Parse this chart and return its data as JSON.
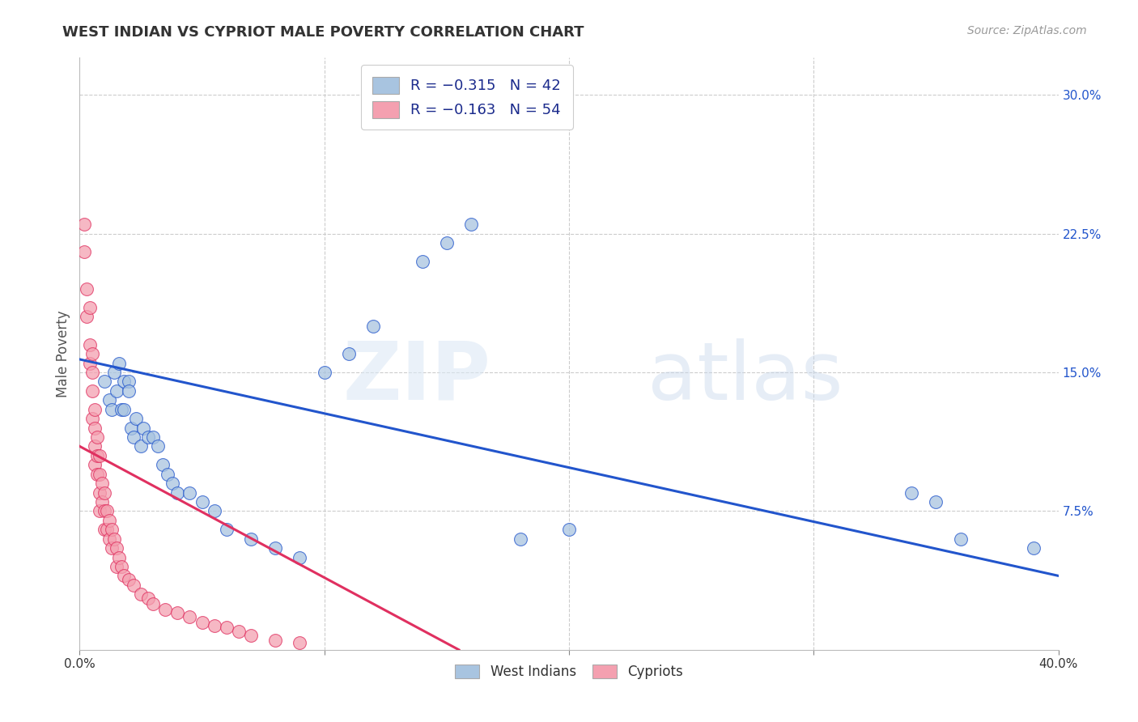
{
  "title": "WEST INDIAN VS CYPRIOT MALE POVERTY CORRELATION CHART",
  "source": "Source: ZipAtlas.com",
  "ylabel": "Male Poverty",
  "ytick_labels": [
    "",
    "7.5%",
    "15.0%",
    "22.5%",
    "30.0%"
  ],
  "ytick_values": [
    0.0,
    0.075,
    0.15,
    0.225,
    0.3
  ],
  "xlim": [
    0.0,
    0.4
  ],
  "ylim": [
    0.0,
    0.32
  ],
  "west_indian_R": -0.315,
  "west_indian_N": 42,
  "cypriot_R": -0.163,
  "cypriot_N": 54,
  "west_indian_color": "#a8c4e0",
  "cypriot_color": "#f4a0b0",
  "west_indian_line_color": "#2255cc",
  "cypriot_line_color": "#e03060",
  "background_color": "#ffffff",
  "grid_color": "#cccccc",
  "west_indian_x": [
    0.01,
    0.012,
    0.013,
    0.014,
    0.015,
    0.016,
    0.017,
    0.018,
    0.018,
    0.02,
    0.02,
    0.021,
    0.022,
    0.023,
    0.025,
    0.026,
    0.028,
    0.03,
    0.032,
    0.034,
    0.036,
    0.038,
    0.04,
    0.045,
    0.05,
    0.055,
    0.06,
    0.07,
    0.08,
    0.09,
    0.1,
    0.11,
    0.12,
    0.14,
    0.15,
    0.16,
    0.18,
    0.2,
    0.34,
    0.35,
    0.36,
    0.39
  ],
  "west_indian_y": [
    0.145,
    0.135,
    0.13,
    0.15,
    0.14,
    0.155,
    0.13,
    0.145,
    0.13,
    0.145,
    0.14,
    0.12,
    0.115,
    0.125,
    0.11,
    0.12,
    0.115,
    0.115,
    0.11,
    0.1,
    0.095,
    0.09,
    0.085,
    0.085,
    0.08,
    0.075,
    0.065,
    0.06,
    0.055,
    0.05,
    0.15,
    0.16,
    0.175,
    0.21,
    0.22,
    0.23,
    0.06,
    0.065,
    0.085,
    0.08,
    0.06,
    0.055
  ],
  "cypriot_x": [
    0.002,
    0.002,
    0.003,
    0.003,
    0.004,
    0.004,
    0.004,
    0.005,
    0.005,
    0.005,
    0.005,
    0.006,
    0.006,
    0.006,
    0.006,
    0.007,
    0.007,
    0.007,
    0.008,
    0.008,
    0.008,
    0.008,
    0.009,
    0.009,
    0.01,
    0.01,
    0.01,
    0.011,
    0.011,
    0.012,
    0.012,
    0.013,
    0.013,
    0.014,
    0.015,
    0.015,
    0.016,
    0.017,
    0.018,
    0.02,
    0.022,
    0.025,
    0.028,
    0.03,
    0.035,
    0.04,
    0.045,
    0.05,
    0.055,
    0.06,
    0.065,
    0.07,
    0.08,
    0.09
  ],
  "cypriot_y": [
    0.23,
    0.215,
    0.195,
    0.18,
    0.185,
    0.165,
    0.155,
    0.16,
    0.15,
    0.14,
    0.125,
    0.13,
    0.12,
    0.11,
    0.1,
    0.115,
    0.105,
    0.095,
    0.105,
    0.095,
    0.085,
    0.075,
    0.09,
    0.08,
    0.085,
    0.075,
    0.065,
    0.075,
    0.065,
    0.07,
    0.06,
    0.065,
    0.055,
    0.06,
    0.055,
    0.045,
    0.05,
    0.045,
    0.04,
    0.038,
    0.035,
    0.03,
    0.028,
    0.025,
    0.022,
    0.02,
    0.018,
    0.015,
    0.013,
    0.012,
    0.01,
    0.008,
    0.005,
    0.004
  ],
  "wi_line_x": [
    0.0,
    0.4
  ],
  "wi_line_y": [
    0.157,
    0.04
  ],
  "cy_line_x": [
    0.0,
    0.155
  ],
  "cy_line_y": [
    0.11,
    0.0
  ]
}
